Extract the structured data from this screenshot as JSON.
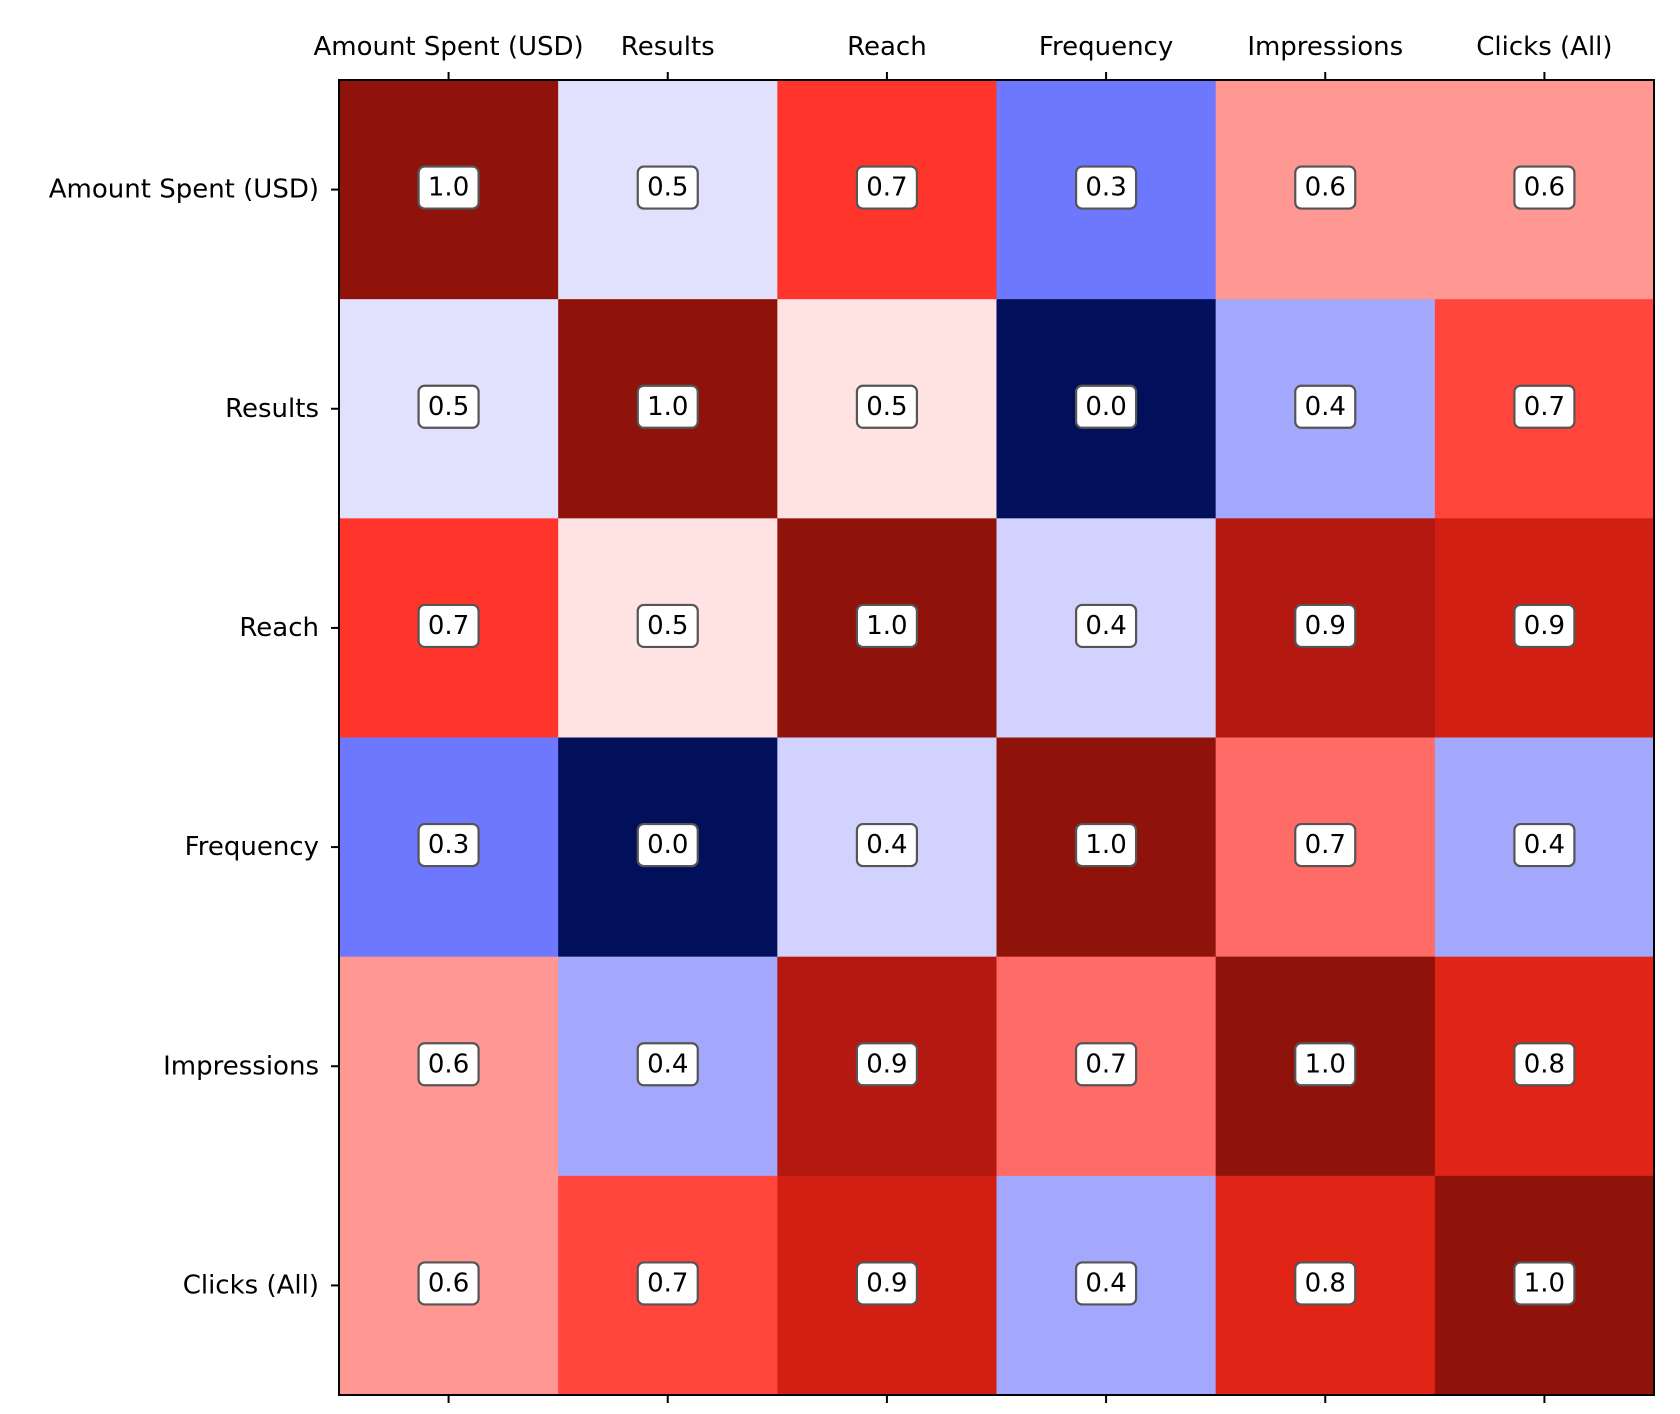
{
  "chart_data": {
    "type": "heatmap",
    "x_labels": [
      "Amount Spent (USD)",
      "Results",
      "Reach",
      "Frequency",
      "Impressions",
      "Clicks (All)"
    ],
    "y_labels": [
      "Amount Spent (USD)",
      "Results",
      "Reach",
      "Frequency",
      "Impressions",
      "Clicks (All)"
    ],
    "values": [
      [
        1.0,
        0.5,
        0.7,
        0.3,
        0.6,
        0.6
      ],
      [
        0.5,
        1.0,
        0.5,
        0.0,
        0.4,
        0.7
      ],
      [
        0.7,
        0.5,
        1.0,
        0.4,
        0.9,
        0.9
      ],
      [
        0.3,
        0.0,
        0.4,
        1.0,
        0.7,
        0.4
      ],
      [
        0.6,
        0.4,
        0.9,
        0.7,
        1.0,
        0.8
      ],
      [
        0.6,
        0.7,
        0.9,
        0.4,
        0.8,
        1.0
      ]
    ],
    "cell_colors": [
      [
        "#8f130b",
        "#e1e1fd",
        "#ff352b",
        "#6e78ff",
        "#ff9893",
        "#ff9893"
      ],
      [
        "#e1e1fd",
        "#8f130b",
        "#ffe2e2",
        "#02105b",
        "#a3a8fd",
        "#ff453c"
      ],
      [
        "#ff352b",
        "#ffe2e2",
        "#8f130b",
        "#d2d2fe",
        "#b31911",
        "#d11f14"
      ],
      [
        "#6e78ff",
        "#02105b",
        "#d2d2fe",
        "#8f130b",
        "#ff6b66",
        "#a3a8fd"
      ],
      [
        "#ff9893",
        "#a3a8fd",
        "#b31911",
        "#ff6b66",
        "#8f130b",
        "#e02415"
      ],
      [
        "#ff9893",
        "#ff453c",
        "#d11f14",
        "#a3a8fd",
        "#e02415",
        "#8f130b"
      ]
    ],
    "colormap": "seismic",
    "value_range": [
      0.0,
      1.0
    ],
    "x_tick_position": "top",
    "grid": false,
    "legend": "none"
  }
}
